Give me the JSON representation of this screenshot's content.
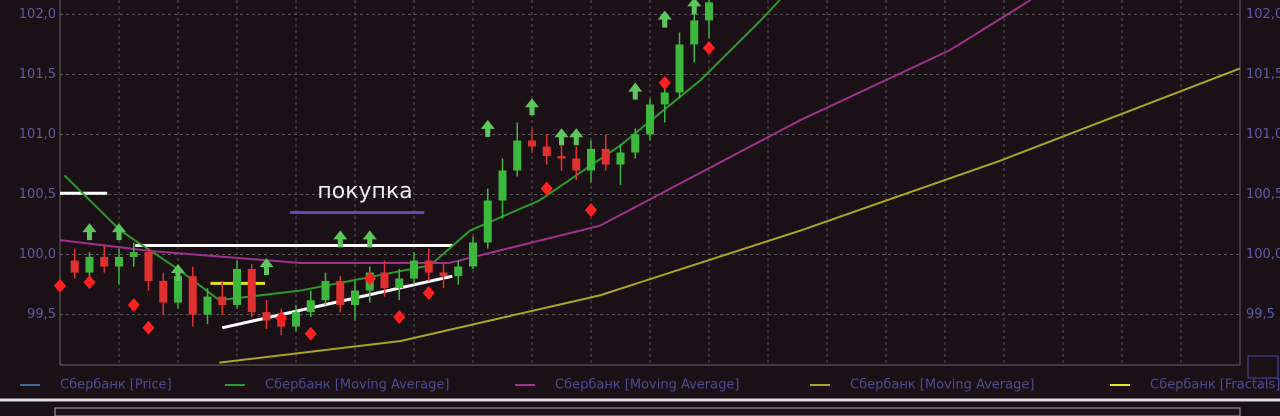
{
  "chart_data": {
    "type": "candlestick",
    "annotation": "покупка",
    "xlim": [
      0,
      80
    ],
    "ylim": [
      99.08,
      102.12
    ],
    "yticks": [
      {
        "value": 99.5,
        "label": "99,5"
      },
      {
        "value": 100.0,
        "label": "100,0"
      },
      {
        "value": 100.5,
        "label": "100,5"
      },
      {
        "value": 101.0,
        "label": "101,0"
      },
      {
        "value": 101.5,
        "label": "101,5"
      },
      {
        "value": 102.0,
        "label": "102,0"
      }
    ],
    "grid": true,
    "series": [
      {
        "name": "Сбербанк [Price]",
        "type": "candlestick",
        "color": "#3a6a9a",
        "up_color": "#3cb83c",
        "down_color": "#e03030",
        "x": [
          1,
          2,
          3,
          4,
          5,
          6,
          7,
          8,
          9,
          10,
          11,
          12,
          13,
          14,
          15,
          16,
          17,
          18,
          19,
          20,
          21,
          22,
          23,
          24,
          25,
          26,
          27,
          28,
          29,
          30,
          31,
          32,
          33,
          34,
          35,
          36,
          37,
          38,
          39,
          40,
          41,
          42,
          43,
          44
        ],
        "open": [
          99.95,
          99.85,
          99.98,
          99.9,
          99.98,
          100.02,
          99.78,
          99.6,
          99.82,
          99.5,
          99.65,
          99.58,
          99.88,
          99.52,
          99.45,
          99.4,
          99.52,
          99.62,
          99.78,
          99.58,
          99.7,
          99.85,
          99.72,
          99.8,
          99.95,
          99.85,
          99.82,
          99.9,
          100.1,
          100.45,
          100.7,
          100.95,
          100.9,
          100.82,
          100.8,
          100.7,
          100.88,
          100.75,
          100.85,
          101.0,
          101.25,
          101.35,
          101.75,
          101.95
        ],
        "high": [
          100.05,
          100.02,
          100.08,
          100.05,
          100.1,
          100.05,
          99.85,
          99.88,
          99.9,
          99.72,
          99.78,
          99.95,
          99.92,
          99.62,
          99.55,
          99.58,
          99.7,
          99.85,
          99.82,
          99.78,
          99.9,
          99.95,
          99.88,
          100.02,
          100.05,
          99.92,
          99.95,
          100.15,
          100.55,
          100.8,
          101.1,
          101.05,
          101.0,
          100.95,
          100.9,
          100.95,
          101.0,
          100.92,
          101.05,
          101.3,
          101.45,
          101.85,
          102.05,
          102.15
        ],
        "low": [
          99.8,
          99.78,
          99.85,
          99.75,
          99.9,
          99.7,
          99.5,
          99.55,
          99.4,
          99.42,
          99.5,
          99.55,
          99.48,
          99.38,
          99.33,
          99.36,
          99.48,
          99.58,
          99.52,
          99.45,
          99.6,
          99.65,
          99.62,
          99.75,
          99.78,
          99.72,
          99.75,
          99.88,
          100.05,
          100.3,
          100.65,
          100.85,
          100.75,
          100.7,
          100.62,
          100.6,
          100.7,
          100.58,
          100.8,
          100.95,
          101.1,
          101.3,
          101.6,
          101.8
        ],
        "close": [
          99.85,
          99.98,
          99.9,
          99.98,
          100.02,
          99.78,
          99.6,
          99.82,
          99.5,
          99.65,
          99.58,
          99.88,
          99.52,
          99.45,
          99.4,
          99.52,
          99.62,
          99.78,
          99.58,
          99.7,
          99.85,
          99.72,
          99.8,
          99.95,
          99.85,
          99.82,
          99.9,
          100.1,
          100.45,
          100.7,
          100.95,
          100.9,
          100.82,
          100.8,
          100.7,
          100.88,
          100.75,
          100.85,
          101.0,
          101.25,
          101.35,
          101.75,
          101.95,
          102.1
        ]
      },
      {
        "name": "Сбербанк [Moving Average]",
        "type": "line",
        "color": "#2a9a2a",
        "x": [
          0.3,
          4.1,
          8.1,
          10.8,
          16.3,
          25.1,
          27.8,
          32.5,
          38.0,
          43.4,
          47.5,
          48.8
        ],
        "values": [
          100.66,
          100.2,
          99.87,
          99.62,
          99.7,
          99.91,
          100.2,
          100.45,
          100.91,
          101.45,
          101.95,
          102.12
        ]
      },
      {
        "name": "Сбербанк [Moving Average]",
        "type": "line",
        "color": "#a03090",
        "x": [
          0,
          6.1,
          16.3,
          26.4,
          36.6,
          50.2,
          60.3,
          65.8
        ],
        "values": [
          100.12,
          100.03,
          99.93,
          99.93,
          100.24,
          101.12,
          101.7,
          102.12
        ]
      },
      {
        "name": "Сбербанк [Moving Average]",
        "type": "line",
        "color": "#a8a820",
        "x": [
          10.8,
          23.1,
          36.6,
          50.2,
          63.7,
          80
        ],
        "values": [
          99.1,
          99.28,
          99.66,
          100.2,
          100.78,
          101.55
        ]
      },
      {
        "name": "Сбербанк [Fractals]",
        "type": "fractals",
        "color": "#e8e820",
        "up_color": "#5cc85c",
        "down_color": "#ff2020",
        "up_x": [
          2,
          4,
          8,
          14,
          19,
          21,
          29,
          32,
          34,
          35,
          39,
          41,
          43
        ],
        "up_values": [
          100.22,
          100.22,
          99.88,
          99.93,
          100.16,
          100.16,
          101.08,
          101.26,
          101.01,
          101.01,
          101.39,
          101.99,
          102.1
        ],
        "down_x": [
          0,
          2,
          5,
          6,
          15,
          17,
          21,
          23,
          25,
          33,
          36,
          41,
          44
        ],
        "down_values": [
          99.74,
          99.77,
          99.58,
          99.39,
          99.47,
          99.34,
          99.8,
          99.48,
          99.68,
          100.55,
          100.37,
          101.43,
          101.72
        ]
      }
    ],
    "levels": [
      {
        "color": "#ffffff",
        "x": [
          0,
          3.2
        ],
        "values": [
          100.51,
          100.51
        ]
      },
      {
        "color": "#ffffff",
        "x": [
          5.1,
          26.6
        ],
        "values": [
          100.075,
          100.075
        ]
      },
      {
        "color": "#6a40c0",
        "x": [
          15.6,
          24.7
        ],
        "values": [
          100.35,
          100.35
        ]
      },
      {
        "color": "#e0e020",
        "x": [
          10.2,
          13.9
        ],
        "values": [
          99.76,
          99.76
        ]
      },
      {
        "color": "#ffffff",
        "x": [
          11.0,
          26.6
        ],
        "values": [
          99.39,
          99.82
        ]
      }
    ]
  }
}
